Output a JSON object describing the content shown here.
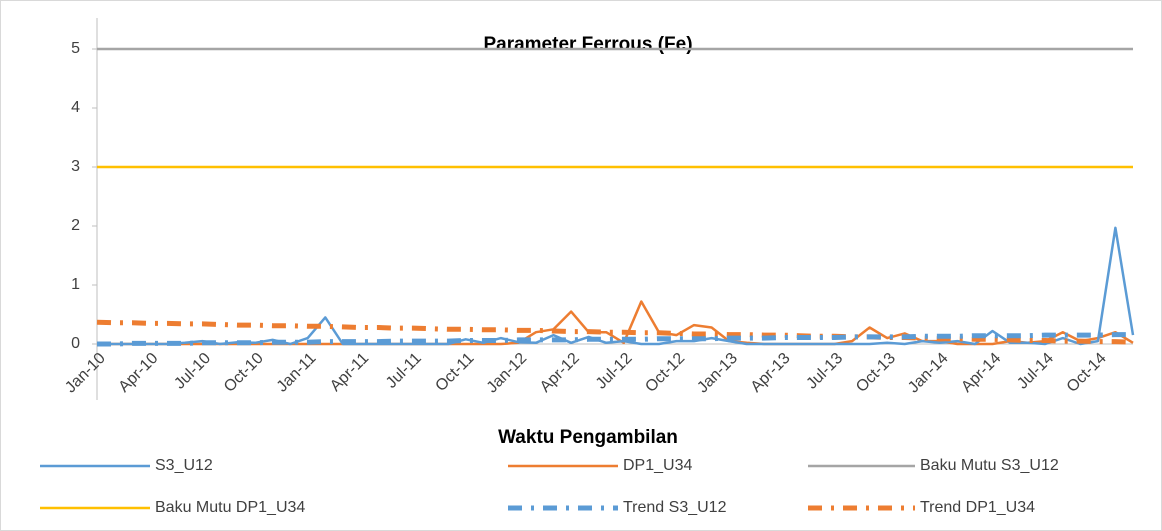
{
  "chart_data": {
    "type": "line",
    "title": "Parameter Ferrous (Fe)",
    "x_label": "Waktu Pengambilan",
    "categories": [
      "Jan-10",
      null,
      null,
      "Apr-10",
      null,
      null,
      "Jul-10",
      null,
      null,
      "Oct-10",
      null,
      null,
      "Jan-11",
      null,
      null,
      "Apr-11",
      null,
      null,
      "Jul-11",
      null,
      null,
      "Oct-11",
      null,
      null,
      "Jan-12",
      null,
      null,
      "Apr-12",
      null,
      null,
      "Jul-12",
      null,
      null,
      "Oct-12",
      null,
      null,
      "Jan-13",
      null,
      null,
      "Apr-13",
      null,
      null,
      "Jul-13",
      null,
      null,
      "Oct-13",
      null,
      null,
      "Jan-14",
      null,
      null,
      "Apr-14",
      null,
      null,
      "Jul-14",
      null,
      null,
      "Oct-14",
      null,
      null
    ],
    "ylim": [
      0,
      5.5
    ],
    "yticks": [
      0,
      1,
      2,
      3,
      4,
      5
    ],
    "grid": false,
    "series": [
      {
        "name": "S3_U12",
        "color": "#5b9bd5",
        "dash": "solid",
        "values": [
          0,
          0,
          0,
          0,
          0,
          0.02,
          0.05,
          0,
          0.03,
          0.02,
          0.07,
          0,
          0.1,
          0.45,
          0,
          0,
          0,
          0,
          0,
          0,
          0,
          0.08,
          0.02,
          0.1,
          0.03,
          0.02,
          0.15,
          0.02,
          0.12,
          0.02,
          0.05,
          0,
          0,
          0.05,
          0.05,
          0.1,
          0.05,
          0,
          0,
          0,
          0,
          0,
          0,
          0,
          0,
          0.02,
          0,
          0.05,
          0.02,
          0.05,
          0,
          0.22,
          0.02,
          0.02,
          0,
          0.1,
          0,
          0.05,
          1.97,
          0.15
        ]
      },
      {
        "name": "DP1_U34",
        "color": "#ed7d31",
        "dash": "solid",
        "values": [
          0,
          0,
          0,
          0,
          0,
          0,
          0,
          0,
          0,
          0,
          0,
          0,
          0,
          0,
          0,
          0,
          0,
          0,
          0,
          0,
          0,
          0,
          0,
          0,
          0.02,
          0.2,
          0.25,
          0.55,
          0.2,
          0.2,
          0.02,
          0.72,
          0.2,
          0.15,
          0.32,
          0.28,
          0.05,
          0.02,
          0,
          0,
          0,
          0,
          0,
          0.05,
          0.28,
          0.1,
          0.18,
          0.05,
          0.05,
          0,
          0,
          0,
          0.05,
          0.02,
          0.05,
          0.2,
          0.05,
          0.1,
          0.2,
          0.02
        ]
      },
      {
        "name": "Baku Mutu S3_U12",
        "color": "#a5a5a5",
        "dash": "solid",
        "values": [
          5,
          5,
          5,
          5,
          5,
          5,
          5,
          5,
          5,
          5,
          5,
          5,
          5,
          5,
          5,
          5,
          5,
          5,
          5,
          5,
          5,
          5,
          5,
          5,
          5,
          5,
          5,
          5,
          5,
          5,
          5,
          5,
          5,
          5,
          5,
          5,
          5,
          5,
          5,
          5,
          5,
          5,
          5,
          5,
          5,
          5,
          5,
          5,
          5,
          5,
          5,
          5,
          5,
          5,
          5,
          5,
          5,
          5,
          5,
          5
        ]
      },
      {
        "name": "Baku Mutu DP1_U34",
        "color": "#ffc000",
        "dash": "solid",
        "values": [
          3,
          3,
          3,
          3,
          3,
          3,
          3,
          3,
          3,
          3,
          3,
          3,
          3,
          3,
          3,
          3,
          3,
          3,
          3,
          3,
          3,
          3,
          3,
          3,
          3,
          3,
          3,
          3,
          3,
          3,
          3,
          3,
          3,
          3,
          3,
          3,
          3,
          3,
          3,
          3,
          3,
          3,
          3,
          3,
          3,
          3,
          3,
          3,
          3,
          3,
          3,
          3,
          3,
          3,
          3,
          3,
          3,
          3,
          3,
          3
        ]
      },
      {
        "name": "Trend S3_U12",
        "color": "#5b9bd5",
        "dash": "dash-dot",
        "values": [
          0,
          0,
          0.01,
          0.01,
          0.01,
          0.01,
          0.02,
          0.02,
          0.02,
          0.02,
          0.03,
          0.03,
          0.03,
          0.04,
          0.04,
          0.04,
          0.04,
          0.05,
          0.05,
          0.05,
          0.05,
          0.06,
          0.06,
          0.06,
          0.07,
          0.07,
          0.07,
          0.07,
          0.08,
          0.08,
          0.08,
          0.08,
          0.09,
          0.09,
          0.09,
          0.09,
          0.1,
          0.1,
          0.1,
          0.11,
          0.11,
          0.11,
          0.11,
          0.12,
          0.12,
          0.12,
          0.12,
          0.13,
          0.13,
          0.13,
          0.14,
          0.14,
          0.14,
          0.14,
          0.15,
          0.15,
          0.15,
          0.15,
          0.16,
          0.16
        ]
      },
      {
        "name": "Trend DP1_U34",
        "color": "#ed7d31",
        "dash": "dash-dot",
        "values": [
          0.37,
          0.36,
          0.36,
          0.35,
          0.35,
          0.34,
          0.34,
          0.33,
          0.32,
          0.32,
          0.31,
          0.31,
          0.3,
          0.3,
          0.29,
          0.28,
          0.28,
          0.27,
          0.27,
          0.26,
          0.25,
          0.25,
          0.24,
          0.24,
          0.23,
          0.23,
          0.22,
          0.21,
          0.21,
          0.2,
          0.2,
          0.19,
          0.19,
          0.18,
          0.17,
          0.17,
          0.16,
          0.16,
          0.15,
          0.15,
          0.14,
          0.13,
          0.13,
          0.12,
          0.12,
          0.11,
          0.11,
          0.1,
          0.09,
          0.09,
          0.08,
          0.08,
          0.07,
          0.06,
          0.06,
          0.05,
          0.05,
          0.04,
          0.04,
          0.03
        ]
      }
    ]
  }
}
